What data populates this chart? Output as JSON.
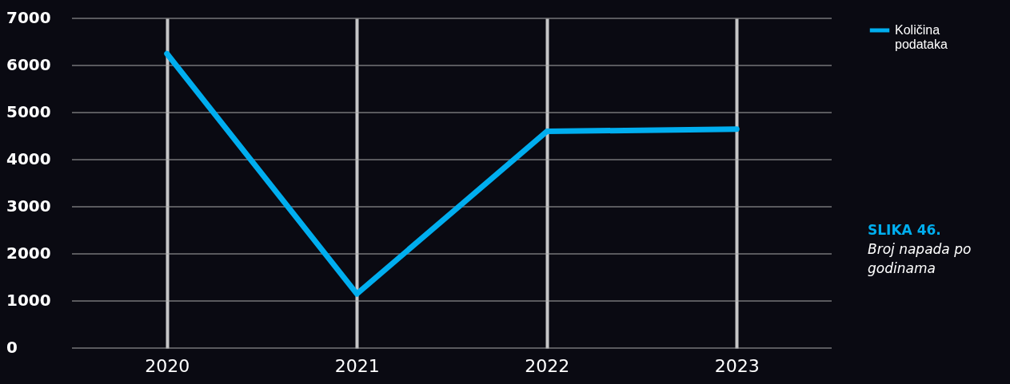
{
  "chart_data": {
    "type": "line",
    "title": "SLIKA 46.",
    "subtitle": "Broj napada po godinama",
    "categories": [
      "2020",
      "2021",
      "2022",
      "2023"
    ],
    "series": [
      {
        "name": "Količina podataka",
        "color": "#00aeef",
        "values": [
          6250,
          1150,
          4600,
          4650
        ]
      }
    ],
    "ylim": [
      0,
      7000
    ],
    "yticks": [
      0,
      1000,
      2000,
      3000,
      4000,
      5000,
      6000,
      7000
    ],
    "grid": true,
    "legend": "top right",
    "marker": "none",
    "line_style": "solid"
  }
}
